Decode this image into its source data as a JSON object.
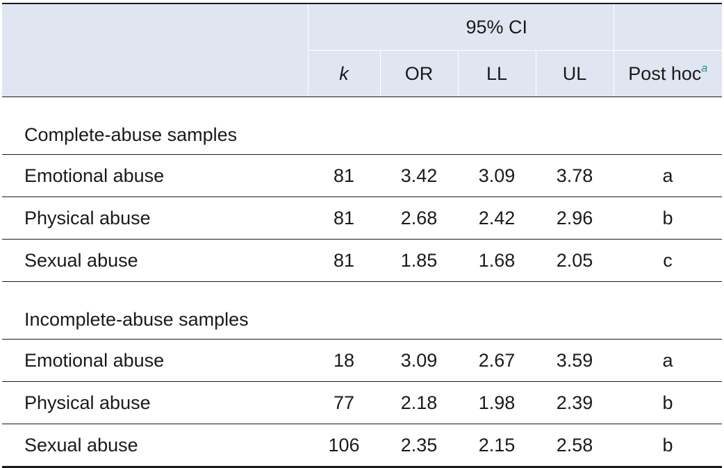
{
  "table": {
    "header": {
      "group_label": "95% CI",
      "columns": {
        "k": "k",
        "or": "OR",
        "ll": "LL",
        "ul": "UL",
        "posthoc": "Post hoc",
        "posthoc_note": "a"
      }
    },
    "sections": [
      {
        "title": "Complete-abuse samples",
        "rows": [
          {
            "label": "Emotional abuse",
            "k": "81",
            "or": "3.42",
            "ll": "3.09",
            "ul": "3.78",
            "posthoc": "a"
          },
          {
            "label": "Physical abuse",
            "k": "81",
            "or": "2.68",
            "ll": "2.42",
            "ul": "2.96",
            "posthoc": "b"
          },
          {
            "label": "Sexual abuse",
            "k": "81",
            "or": "1.85",
            "ll": "1.68",
            "ul": "2.05",
            "posthoc": "c"
          }
        ]
      },
      {
        "title": "Incomplete-abuse samples",
        "rows": [
          {
            "label": "Emotional abuse",
            "k": "18",
            "or": "3.09",
            "ll": "2.67",
            "ul": "3.59",
            "posthoc": "a"
          },
          {
            "label": "Physical abuse",
            "k": "77",
            "or": "2.18",
            "ll": "1.98",
            "ul": "2.39",
            "posthoc": "b"
          },
          {
            "label": "Sexual abuse",
            "k": "106",
            "or": "2.35",
            "ll": "2.15",
            "ul": "2.58",
            "posthoc": "b"
          }
        ]
      }
    ]
  }
}
